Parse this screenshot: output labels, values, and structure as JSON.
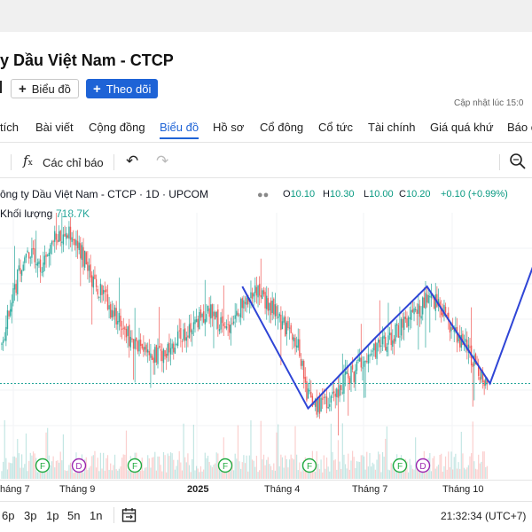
{
  "company": {
    "title": "y Dầu Việt Nam - CTCP"
  },
  "actions": {
    "chart_button": "Biểu đồ",
    "follow_button": "Theo dõi"
  },
  "updated_text": "Cập nhật lúc  15:0",
  "tabs": [
    {
      "label": "tích"
    },
    {
      "label": "Bài viết"
    },
    {
      "label": "Cộng đồng"
    },
    {
      "label": "Biểu đồ"
    },
    {
      "label": "Hồ sơ"
    },
    {
      "label": "Cổ đông"
    },
    {
      "label": "Cổ tức"
    },
    {
      "label": "Tài chính"
    },
    {
      "label": "Giá quá khứ"
    },
    {
      "label": "Báo c"
    }
  ],
  "toolbar": {
    "indicators_label": "Các chỉ báo"
  },
  "legend": {
    "symbol_text": "ông ty Dầu Việt Nam - CTCP · 1D · UPCOM",
    "o_label": "O",
    "o_value": "10.10",
    "h_label": "H",
    "h_value": "10.30",
    "l_label": "L",
    "l_value": "10.00",
    "c_label": "C",
    "c_value": "10.20",
    "change": "+0.10 (+0.99%)",
    "volume_label": "Khối lượng",
    "volume_value": "718.7K"
  },
  "x_axis": [
    "háng 7",
    "Tháng 9",
    "2025",
    "Tháng 4",
    "Tháng 7",
    "Tháng 10"
  ],
  "timeframes": [
    "6p",
    "3p",
    "1p",
    "5n",
    "1n"
  ],
  "clock": "21:32:34 (UTC+7)",
  "markers": [
    {
      "kind": "F"
    },
    {
      "kind": "D"
    },
    {
      "kind": "F"
    },
    {
      "kind": "F"
    },
    {
      "kind": "F"
    },
    {
      "kind": "F"
    },
    {
      "kind": "D"
    }
  ],
  "colors": {
    "up": "#26a69a",
    "down": "#ef5350",
    "accent": "#1e63d6",
    "pattern": "#2f45d6",
    "dividend": "#9c27b0",
    "financial": "#22ab42"
  },
  "chart_data": {
    "type": "candlestick",
    "title": "Công ty Dầu Việt Nam - CTCP · 1D · UPCOM",
    "ylim": [
      9.2,
      13.2
    ],
    "price_line": 10.2,
    "categories": [
      "Tháng 7",
      "Tháng 9",
      "2025",
      "Tháng 4",
      "Tháng 7",
      "Tháng 10"
    ],
    "anchors": [
      [
        0,
        10.9
      ],
      [
        8,
        11.8
      ],
      [
        16,
        12.6
      ],
      [
        28,
        12.3
      ],
      [
        36,
        12.8
      ],
      [
        45,
        13.0
      ],
      [
        55,
        12.6
      ],
      [
        65,
        12.0
      ],
      [
        75,
        11.6
      ],
      [
        90,
        11.0
      ],
      [
        102,
        10.7
      ],
      [
        115,
        10.8
      ],
      [
        130,
        11.2
      ],
      [
        145,
        11.5
      ],
      [
        158,
        11.2
      ],
      [
        168,
        11.7
      ],
      [
        178,
        11.9
      ],
      [
        188,
        11.6
      ],
      [
        198,
        11.2
      ],
      [
        208,
        10.8
      ],
      [
        212,
        10.1
      ],
      [
        220,
        9.8
      ],
      [
        228,
        9.9
      ],
      [
        238,
        10.2
      ],
      [
        250,
        10.5
      ],
      [
        262,
        10.8
      ],
      [
        275,
        11.1
      ],
      [
        290,
        11.5
      ],
      [
        300,
        11.8
      ],
      [
        310,
        11.4
      ],
      [
        320,
        11.0
      ],
      [
        330,
        10.6
      ],
      [
        338,
        10.2
      ]
    ],
    "pattern_line": [
      [
        168,
        11.95
      ],
      [
        214,
        9.75
      ],
      [
        260,
        11.0
      ],
      [
        297,
        11.95
      ],
      [
        341,
        10.2
      ],
      [
        378,
        12.8
      ]
    ]
  }
}
